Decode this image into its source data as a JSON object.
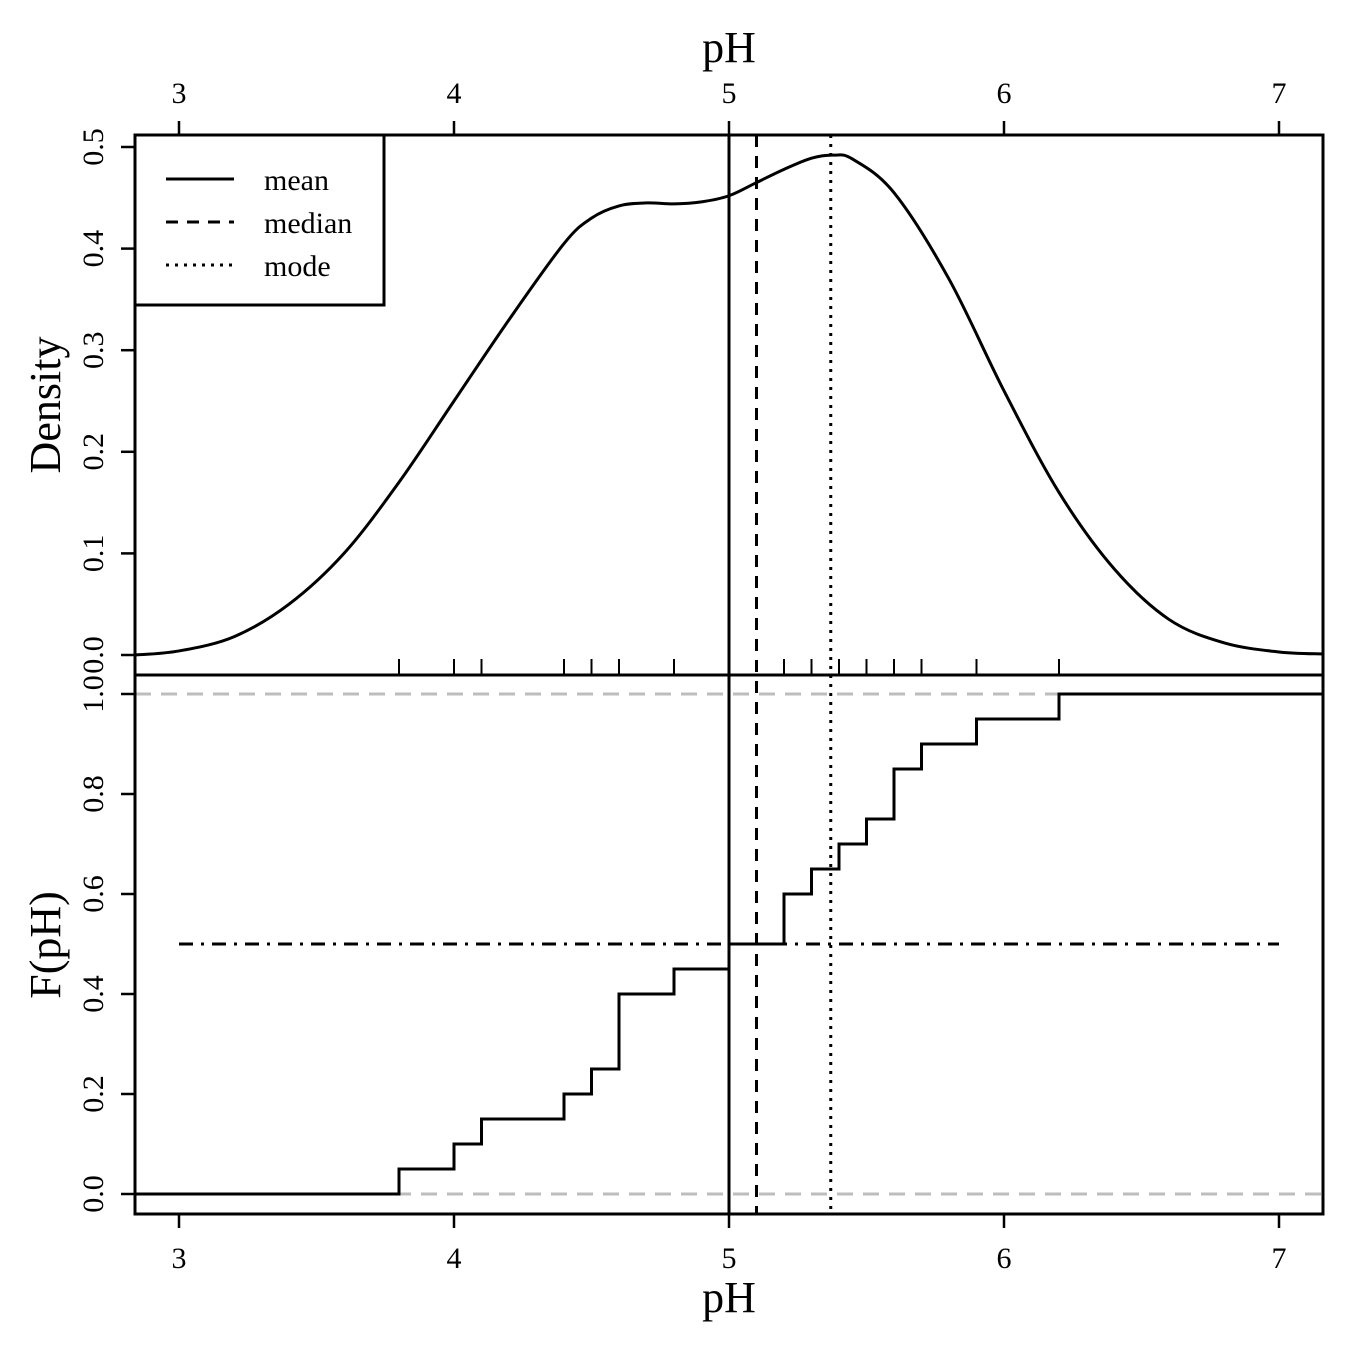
{
  "chart_data": [
    {
      "type": "line",
      "panel": "density",
      "xlabel": "pH",
      "ylabel": "Density",
      "xlim": [
        2.84,
        7.16
      ],
      "ylim": [
        0.0,
        0.5
      ],
      "x_ticks": [
        "3",
        "4",
        "5",
        "6",
        "7"
      ],
      "y_ticks": [
        "0.0",
        "0.1",
        "0.2",
        "0.3",
        "0.4",
        "0.5"
      ],
      "density_curve": {
        "x": [
          2.84,
          3.0,
          3.2,
          3.4,
          3.6,
          3.8,
          4.0,
          4.2,
          4.4,
          4.5,
          4.6,
          4.7,
          4.8,
          4.9,
          5.0,
          5.1,
          5.2,
          5.3,
          5.38,
          5.45,
          5.6,
          5.8,
          6.0,
          6.2,
          6.4,
          6.6,
          6.8,
          7.0,
          7.16
        ],
        "y": [
          0.0,
          0.004,
          0.018,
          0.05,
          0.1,
          0.17,
          0.25,
          0.33,
          0.405,
          0.43,
          0.442,
          0.445,
          0.444,
          0.446,
          0.452,
          0.465,
          0.478,
          0.489,
          0.492,
          0.488,
          0.455,
          0.37,
          0.26,
          0.16,
          0.085,
          0.035,
          0.012,
          0.003,
          0.001
        ]
      },
      "rug": [
        3.8,
        4.0,
        4.1,
        4.4,
        4.5,
        4.6,
        4.8,
        5.0,
        5.2,
        5.3,
        5.4,
        5.5,
        5.6,
        5.7,
        5.9,
        6.2
      ],
      "reference_lines": [
        {
          "name": "mean",
          "x": 5.0,
          "style": "solid"
        },
        {
          "name": "median",
          "x": 5.1,
          "style": "dashed"
        },
        {
          "name": "mode",
          "x": 5.37,
          "style": "dotted"
        }
      ],
      "legend": {
        "position": "top-left",
        "entries": [
          {
            "label": "mean",
            "style": "solid"
          },
          {
            "label": "median",
            "style": "dashed"
          },
          {
            "label": "mode",
            "style": "dotted"
          }
        ]
      }
    },
    {
      "type": "line",
      "panel": "ecdf",
      "xlabel": "pH",
      "ylabel": "F(pH)",
      "xlim": [
        2.84,
        7.16
      ],
      "ylim": [
        -0.04,
        1.04
      ],
      "x_ticks": [
        "3",
        "4",
        "5",
        "6",
        "7"
      ],
      "y_ticks": [
        "0.0",
        "0.2",
        "0.4",
        "0.6",
        "0.8",
        "1.0"
      ],
      "ecdf_steps": {
        "x": [
          3.8,
          4.0,
          4.1,
          4.4,
          4.5,
          4.6,
          4.8,
          5.0,
          5.2,
          5.3,
          5.4,
          5.5,
          5.6,
          5.7,
          5.9,
          6.2
        ],
        "y": [
          0.05,
          0.1,
          0.15,
          0.2,
          0.25,
          0.4,
          0.45,
          0.5,
          0.6,
          0.65,
          0.7,
          0.75,
          0.85,
          0.9,
          0.95,
          1.0
        ]
      },
      "horizontal_reference": {
        "y": 0.5,
        "x_from": 3.0,
        "x_to": 7.0,
        "style": "dotdash"
      },
      "bounds_lines": [
        {
          "y": 0.0,
          "color": "#bdbdbd",
          "style": "dashed"
        },
        {
          "y": 1.0,
          "color": "#bdbdbd",
          "style": "dashed"
        }
      ],
      "reference_lines": [
        {
          "name": "mean",
          "x": 5.0,
          "style": "solid"
        },
        {
          "name": "median",
          "x": 5.1,
          "style": "dashed"
        },
        {
          "name": "mode",
          "x": 5.37,
          "style": "dotted"
        }
      ]
    }
  ],
  "colors": {
    "line": "#000000",
    "bounds": "#bdbdbd",
    "background": "#ffffff"
  }
}
